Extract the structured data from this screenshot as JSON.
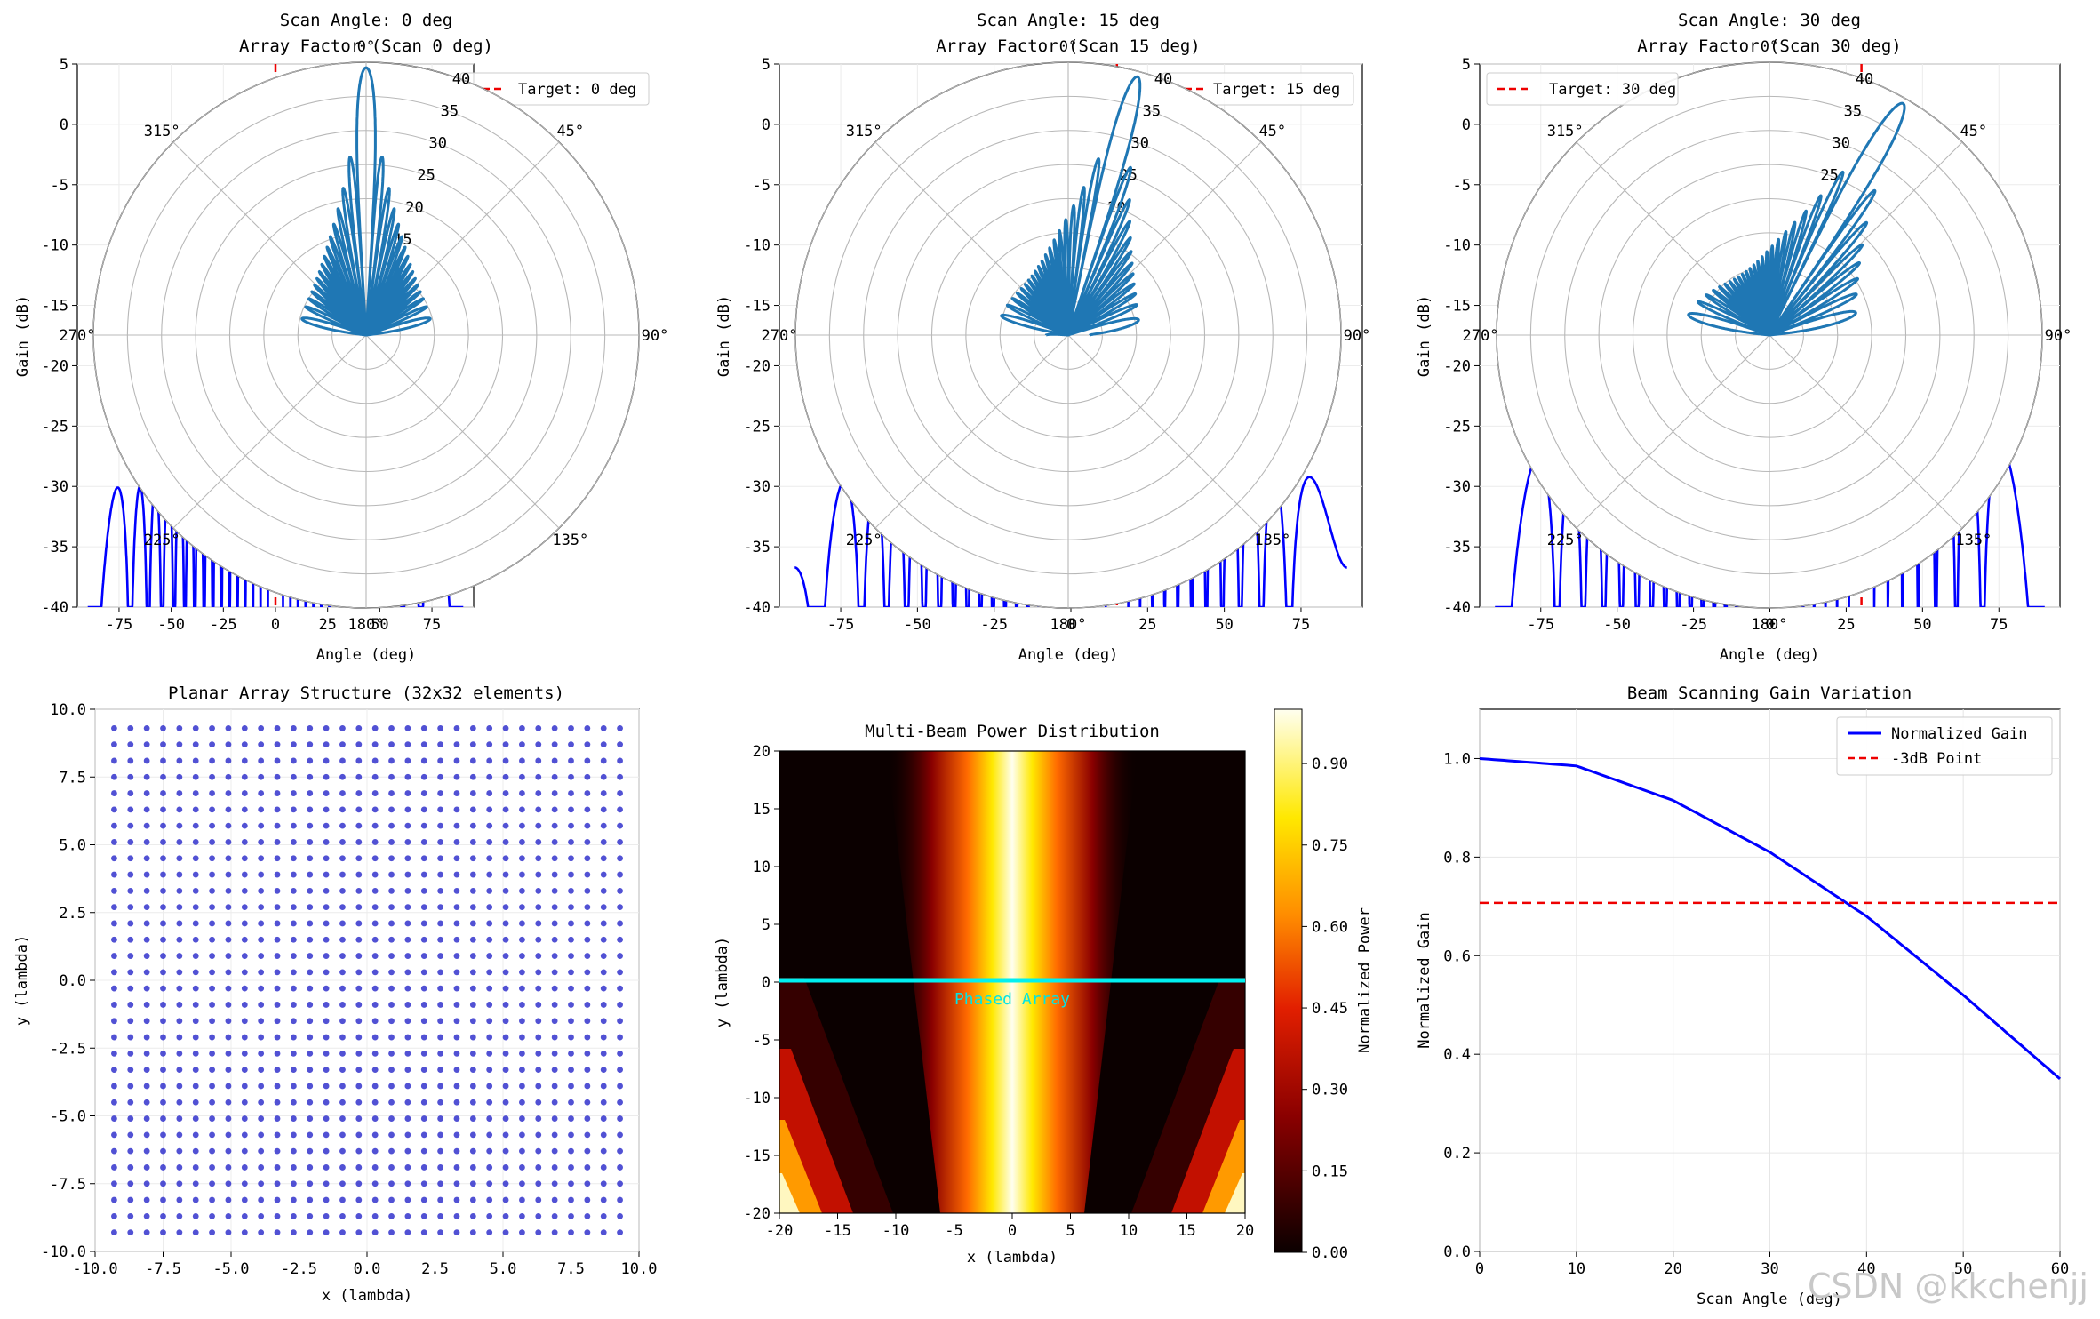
{
  "window": {
    "watermark": "CSDN @kkchenjj"
  },
  "chart_data": [
    {
      "type": "line+polar",
      "title_line1": "Scan Angle: 0 deg",
      "title_line2": "Array Factor (Scan 0 deg)",
      "xlabel": "Angle (deg)",
      "ylabel": "Gain (dB)",
      "xlim": [
        -95,
        95
      ],
      "ylim": [
        -40,
        5
      ],
      "x_ticks": [
        "-75",
        "-50",
        "-25",
        "0",
        "25",
        "50",
        "75"
      ],
      "y_ticks": [
        "5",
        "0",
        "-5",
        "-10",
        "-15",
        "-20",
        "-25",
        "-30",
        "-35",
        "-40"
      ],
      "legend": [
        "Target: 0 deg"
      ],
      "legend_position": "upper right",
      "scan_deg": 0,
      "polar_angle_labels": [
        "0°",
        "45°",
        "90°",
        "135°",
        "180°",
        "225°",
        "270°",
        "315°"
      ],
      "polar_r_labels": [
        "15",
        "20",
        "25",
        "30",
        "35",
        "40"
      ],
      "polar_rmax": 40
    },
    {
      "type": "line+polar",
      "title_line1": "Scan Angle: 15 deg",
      "title_line2": "Array Factor (Scan 15 deg)",
      "xlabel": "Angle (deg)",
      "ylabel": "Gain (dB)",
      "xlim": [
        -95,
        95
      ],
      "ylim": [
        -40,
        5
      ],
      "x_ticks": [
        "-75",
        "-50",
        "-25",
        "0",
        "25",
        "50",
        "75"
      ],
      "y_ticks": [
        "5",
        "0",
        "-5",
        "-10",
        "-15",
        "-20",
        "-25",
        "-30",
        "-35",
        "-40"
      ],
      "legend": [
        "Target: 15 deg"
      ],
      "legend_position": "upper right",
      "scan_deg": 15,
      "polar_angle_labels": [
        "0°",
        "45°",
        "90°",
        "135°",
        "180°",
        "225°",
        "270°",
        "315°"
      ],
      "polar_r_labels": [
        "20",
        "25",
        "30",
        "35",
        "40"
      ],
      "polar_rmax": 40
    },
    {
      "type": "line+polar",
      "title_line1": "Scan Angle: 30 deg",
      "title_line2": "Array Factor (Scan 30 deg)",
      "xlabel": "Angle (deg)",
      "ylabel": "Gain (dB)",
      "xlim": [
        -95,
        95
      ],
      "ylim": [
        -40,
        5
      ],
      "x_ticks": [
        "-75",
        "-50",
        "-25",
        "0",
        "25",
        "50",
        "75"
      ],
      "y_ticks": [
        "5",
        "0",
        "-5",
        "-10",
        "-15",
        "-20",
        "-25",
        "-30",
        "-35",
        "-40"
      ],
      "legend": [
        "Target: 30 deg"
      ],
      "legend_position": "upper left",
      "scan_deg": 30,
      "polar_angle_labels": [
        "0°",
        "45°",
        "90°",
        "135°",
        "180°",
        "225°",
        "270°",
        "315°"
      ],
      "polar_r_labels": [
        "25",
        "30",
        "35",
        "40"
      ],
      "polar_rmax": 40
    },
    {
      "type": "scatter",
      "title": "Planar Array Structure (32x32 elements)",
      "xlabel": "x (lambda)",
      "ylabel": "y (lambda)",
      "xlim": [
        -10,
        10
      ],
      "ylim": [
        -10,
        10
      ],
      "x_ticks": [
        "-10.0",
        "-7.5",
        "-5.0",
        "-2.5",
        "0.0",
        "2.5",
        "5.0",
        "7.5",
        "10.0"
      ],
      "y_ticks": [
        "10.0",
        "7.5",
        "5.0",
        "2.5",
        "0.0",
        "-2.5",
        "-5.0",
        "-7.5",
        "-10.0"
      ],
      "grid_n": 32,
      "grid_extent": 9.3
    },
    {
      "type": "heatmap",
      "title": "Multi-Beam Power Distribution",
      "xlabel": "x (lambda)",
      "ylabel": "y (lambda)",
      "xlim": [
        -20,
        20
      ],
      "ylim": [
        -20,
        20
      ],
      "x_ticks": [
        "-20",
        "-15",
        "-10",
        "-5",
        "0",
        "5",
        "10",
        "15",
        "20"
      ],
      "y_ticks": [
        "20",
        "15",
        "10",
        "5",
        "0",
        "-5",
        "-10",
        "-15",
        "-20"
      ],
      "colorbar_label": "Normalized Power",
      "colorbar_ticks": [
        "0.90",
        "0.75",
        "0.60",
        "0.45",
        "0.30",
        "0.15",
        "0.00"
      ],
      "annotation": "Phased Array"
    },
    {
      "type": "line",
      "title": "Beam Scanning Gain Variation",
      "xlabel": "Scan Angle (deg)",
      "ylabel": "Normalized Gain",
      "xlim": [
        0,
        60
      ],
      "ylim": [
        0,
        1.1
      ],
      "x_ticks": [
        "0",
        "10",
        "20",
        "30",
        "40",
        "50",
        "60"
      ],
      "y_ticks": [
        "1.0",
        "0.8",
        "0.6",
        "0.4",
        "0.2",
        "0.0"
      ],
      "legend": [
        "Normalized Gain",
        "-3dB Point"
      ],
      "legend_position": "upper right",
      "series": [
        {
          "name": "Normalized Gain",
          "x": [
            0,
            10,
            20,
            30,
            40,
            50,
            60
          ],
          "y": [
            1.0,
            0.985,
            0.915,
            0.81,
            0.68,
            0.52,
            0.35
          ]
        },
        {
          "name": "-3dB Point",
          "x": [
            0,
            60
          ],
          "y": [
            0.707,
            0.707
          ]
        }
      ]
    }
  ]
}
